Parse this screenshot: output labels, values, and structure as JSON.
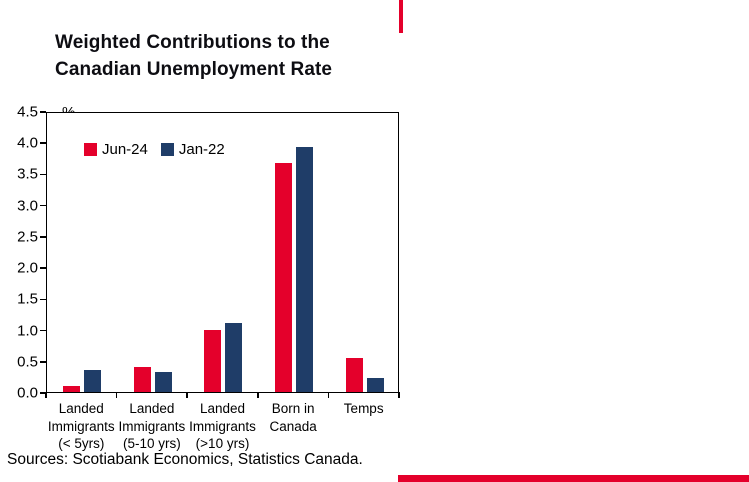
{
  "page": {
    "title_line1": "Weighted Contributions to the",
    "title_line2": "Canadian Unemployment Rate",
    "source": "Sources: Scotiabank Economics, Statistics Canada.",
    "accent_color": "#e4002b"
  },
  "chart_data": {
    "type": "bar",
    "title": "Weighted Contributions to the Canadian Unemployment Rate",
    "unit_label": "%",
    "categories": [
      [
        "Landed",
        "Immigrants",
        "(< 5yrs)"
      ],
      [
        "Landed",
        "Immigrants",
        "(5-10 yrs)"
      ],
      [
        "Landed",
        "Immigrants",
        "(>10 yrs)"
      ],
      [
        "Born in",
        "Canada"
      ],
      [
        "Temps"
      ]
    ],
    "series": [
      {
        "name": "Jun-24",
        "color": "#e4002b",
        "values": [
          0.1,
          0.4,
          1.0,
          3.7,
          0.55
        ]
      },
      {
        "name": "Jan-22",
        "color": "#1f3d68",
        "values": [
          0.35,
          0.33,
          1.12,
          3.97,
          0.22
        ]
      }
    ],
    "ylim": [
      0,
      4.5
    ],
    "ytick_step": 0.5,
    "yticks": [
      "4.5",
      "4.0",
      "3.5",
      "3.0",
      "2.5",
      "2.0",
      "1.5",
      "1.0",
      "0.5",
      "0.0"
    ],
    "grid": false,
    "legend_position": "top-left-inside"
  }
}
